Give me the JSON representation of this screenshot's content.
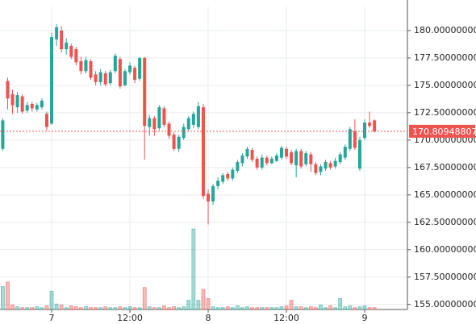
{
  "chart_data": {
    "type": "candlestick",
    "up_color": "#26a69a",
    "down_color": "#ef5350",
    "grid": true,
    "categories": [
      null,
      null,
      null,
      null,
      null,
      null,
      null,
      null,
      null,
      null,
      "7",
      null,
      null,
      null,
      null,
      null,
      null,
      null,
      null,
      null,
      null,
      null,
      null,
      null,
      null,
      null,
      "12:00",
      null,
      null,
      null,
      null,
      null,
      null,
      null,
      null,
      null,
      null,
      null,
      null,
      null,
      null,
      null,
      "8",
      null,
      null,
      null,
      null,
      null,
      null,
      null,
      null,
      null,
      null,
      null,
      null,
      null,
      null,
      null,
      "12:00",
      null,
      null,
      null,
      null,
      null,
      null,
      null,
      null,
      null,
      null,
      null,
      null,
      null,
      null,
      null,
      "9",
      null,
      null
    ],
    "open": [
      169.2,
      175.4,
      174.2,
      173,
      174,
      172.7,
      173.3,
      172.8,
      173,
      172.4,
      171.5,
      179.2,
      180,
      178.3,
      178.6,
      178.3,
      177.2,
      176.3,
      177.2,
      176,
      175.3,
      176.1,
      175.2,
      176.3,
      177.4,
      175,
      176.2,
      176.6,
      175.6,
      177.5,
      171.2,
      172,
      171.1,
      172.9,
      171.5,
      170.5,
      169.2,
      170.2,
      171,
      171.4,
      171.2,
      173,
      165.1,
      164.4,
      165.8,
      166.2,
      166.9,
      166.5,
      167.2,
      167.9,
      168.5,
      169.1,
      168.3,
      167.5,
      168.4,
      167.9,
      168.1,
      168.4,
      169.2,
      168.9,
      167.7,
      169,
      167.8,
      168.7,
      167.8,
      167.1,
      167.4,
      167.9,
      167.6,
      168,
      168.4,
      169.2,
      170.8,
      167.4,
      170.2,
      171.6,
      171.8
    ],
    "high": [
      172,
      175.7,
      174.6,
      174.4,
      174.2,
      173.5,
      173.5,
      173.4,
      173.8,
      172.6,
      179.8,
      180.6,
      180.4,
      179.3,
      178.8,
      178.5,
      177.6,
      177.6,
      177.4,
      176.3,
      176.5,
      176.3,
      176.4,
      177.9,
      177.6,
      176.5,
      177.1,
      176.8,
      177.6,
      177.6,
      172.3,
      172.2,
      173.2,
      173.1,
      171.7,
      170.7,
      170.5,
      171.5,
      172.2,
      172.6,
      173.5,
      173.3,
      165.5,
      166,
      166.6,
      167,
      167.1,
      167.5,
      168.2,
      168.8,
      169.4,
      169.3,
      168.5,
      168.7,
      168.6,
      168.5,
      168.8,
      169.5,
      169.4,
      169.1,
      169.2,
      169.2,
      169,
      168.9,
      168,
      167.8,
      168.2,
      168.1,
      168.4,
      168.9,
      169.6,
      171.2,
      171.9,
      170.3,
      171.9,
      172.6,
      171.9
    ],
    "low": [
      169,
      172.8,
      172.4,
      172.5,
      172.4,
      172.5,
      172.6,
      172.6,
      172.8,
      170.9,
      171.4,
      178.6,
      178,
      177.8,
      177.4,
      176.8,
      176,
      176.1,
      175.5,
      175,
      175,
      174.9,
      175,
      176.1,
      174.7,
      174.9,
      176,
      175.2,
      175.4,
      168.2,
      170.4,
      170.4,
      170.9,
      171.2,
      170.1,
      169,
      168.9,
      170,
      170.8,
      171.1,
      171,
      164.6,
      162.3,
      164.1,
      165.5,
      166,
      166.3,
      166.3,
      167,
      167.6,
      168.3,
      168,
      167.3,
      167.3,
      167.7,
      167.8,
      168,
      168.2,
      168.3,
      167.7,
      166.6,
      167.4,
      167.6,
      167.1,
      166.8,
      166.8,
      167.2,
      167.3,
      167.4,
      167.8,
      168.2,
      169,
      169.1,
      167.2,
      170,
      171.1,
      170.7
    ],
    "close": [
      171.8,
      173.8,
      173.2,
      174.1,
      172.6,
      173.2,
      172.9,
      173.2,
      173.6,
      171.2,
      179.4,
      180.3,
      178.3,
      178.9,
      177.6,
      177.1,
      176.3,
      177.3,
      175.7,
      175.3,
      176.2,
      175.1,
      176.2,
      177.7,
      174.9,
      176.3,
      176.8,
      175.5,
      177.5,
      171.3,
      172,
      171,
      173,
      171.4,
      170.4,
      169.2,
      170.3,
      171.2,
      172,
      172.4,
      173.1,
      164.9,
      164.4,
      165.8,
      166.3,
      166.8,
      166.5,
      167.3,
      168,
      168.6,
      169.2,
      168.2,
      167.5,
      168.4,
      167.9,
      168.3,
      168.6,
      169.3,
      168.5,
      167.9,
      169,
      167.6,
      168.8,
      167.8,
      167,
      167.6,
      168,
      167.5,
      168.1,
      168.7,
      169.4,
      171,
      169.3,
      170,
      171.6,
      171.3,
      170.8
    ],
    "volume": [
      25,
      30,
      5,
      3,
      2,
      2,
      2,
      3,
      2,
      4,
      20,
      6,
      5,
      2,
      4,
      3,
      2,
      3,
      2,
      2,
      2,
      3,
      2,
      2,
      3,
      2,
      3,
      2,
      2,
      24,
      3,
      2,
      2,
      4,
      2,
      3,
      2,
      3,
      10,
      88,
      10,
      22,
      12,
      3,
      2,
      2,
      3,
      2,
      4,
      2,
      3,
      2,
      2,
      2,
      2,
      2,
      2,
      3,
      4,
      10,
      3,
      3,
      2,
      3,
      2,
      5,
      2,
      4,
      2,
      12,
      3,
      4,
      2,
      3,
      4,
      2,
      2
    ],
    "ylim": [
      154.1,
      182.2
    ],
    "yticks": [
      {
        "value": 155,
        "label": "155.00000000"
      },
      {
        "value": 157.5,
        "label": "157.50000000"
      },
      {
        "value": 160,
        "label": "160.00000000"
      },
      {
        "value": 162.5,
        "label": "162.50000000"
      },
      {
        "value": 165,
        "label": "165.00000000"
      },
      {
        "value": 167.5,
        "label": "167.50000000"
      },
      {
        "value": 170,
        "label": "170.00000000"
      },
      {
        "value": 172.5,
        "label": "172.50000000"
      },
      {
        "value": 175,
        "label": "175.00000000"
      },
      {
        "value": 177.5,
        "label": "177.50000000"
      },
      {
        "value": 180,
        "label": "180.00000000"
      }
    ],
    "last_price": {
      "value": 170.80948807,
      "label": "170.80948807"
    }
  }
}
